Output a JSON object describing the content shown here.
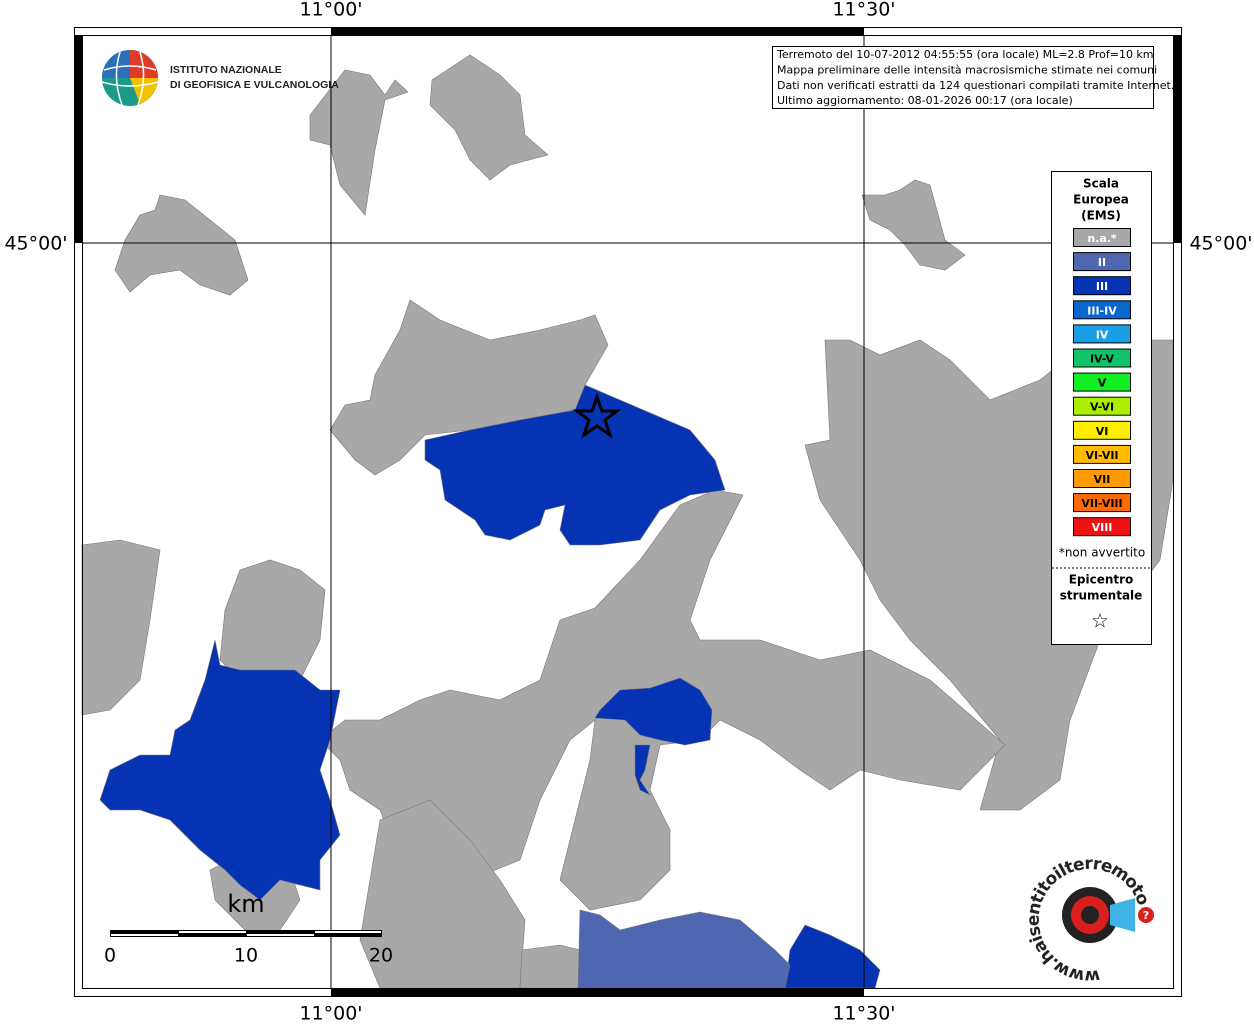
{
  "axes": {
    "top": [
      "11°00'",
      "11°30'"
    ],
    "bottom": [
      "11°00'",
      "11°30'"
    ],
    "left": "45°00'",
    "right": "45°00'"
  },
  "info_box": {
    "lines": [
      "Terremoto del 10-07-2012 04:55:55 (ora locale) ML=2.8 Prof=10 km",
      "Mappa preliminare delle intensità macrosismiche stimate nei comuni",
      "Dati non verificati estratti da 124 questionari compilati tramite Internet.",
      "Ultimo aggiornamento: 08-01-2026 00:17 (ora locale)"
    ]
  },
  "logo": {
    "lines": [
      "ISTITUTO NAZIONALE",
      "DI GEOFISICA E VULCANOLOGIA"
    ]
  },
  "legend": {
    "title": [
      "Scala",
      "Europea",
      "(EMS)"
    ],
    "items": [
      {
        "label": "n.a.*",
        "color": "#a8a8a8",
        "text_color": "#ffffff"
      },
      {
        "label": "II",
        "color": "#4f66b0",
        "text_color": "#ffffff"
      },
      {
        "label": "III",
        "color": "#0633b4",
        "text_color": "#ffffff"
      },
      {
        "label": "III-IV",
        "color": "#0a66cf",
        "text_color": "#ffffff"
      },
      {
        "label": "IV",
        "color": "#1a9fe6",
        "text_color": "#ffffff"
      },
      {
        "label": "IV-V",
        "color": "#10c46a",
        "text_color": "#000000"
      },
      {
        "label": "V",
        "color": "#11ee22",
        "text_color": "#000000"
      },
      {
        "label": "V-VI",
        "color": "#aaee00",
        "text_color": "#000000"
      },
      {
        "label": "VI",
        "color": "#ffee00",
        "text_color": "#000000"
      },
      {
        "label": "VI-VII",
        "color": "#ffbb00",
        "text_color": "#000000"
      },
      {
        "label": "VII",
        "color": "#ff9a00",
        "text_color": "#000000"
      },
      {
        "label": "VII-VIII",
        "color": "#ff6a00",
        "text_color": "#000000"
      },
      {
        "label": "VIII",
        "color": "#ee1111",
        "text_color": "#ffffff"
      }
    ],
    "note": "*non avvertito",
    "epicenter_title": [
      "Epicentro",
      "strumentale"
    ],
    "epicenter_symbol": "☆"
  },
  "scale_bar": {
    "unit": "km",
    "labels": [
      "0",
      "10",
      "20"
    ]
  },
  "watermark": {
    "text": "www.haisentitoilterremoto.it",
    "mark": "?"
  }
}
